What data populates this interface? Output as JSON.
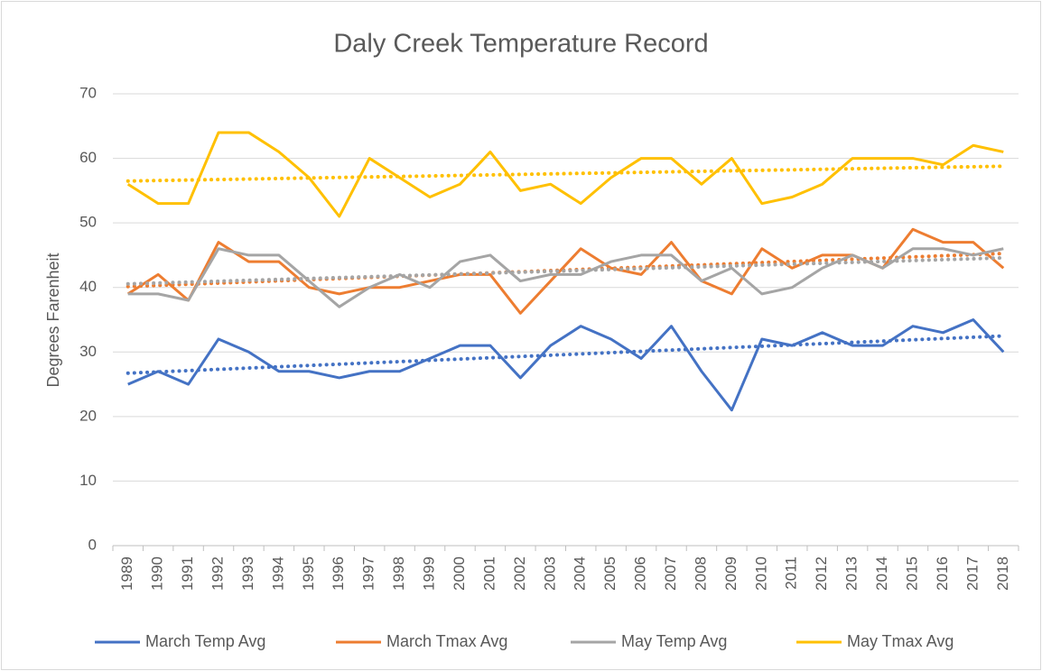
{
  "chart_data": {
    "type": "line",
    "title": "Daly Creek Temperature Record",
    "y_label": "Degrees Farenheit",
    "categories": [
      "1989",
      "1990",
      "1991",
      "1992",
      "1993",
      "1994",
      "1995",
      "1996",
      "1997",
      "1998",
      "1999",
      "2000",
      "2001",
      "2002",
      "2003",
      "2004",
      "2005",
      "2006",
      "2007",
      "2008",
      "2009",
      "2010",
      "2011",
      "2012",
      "2013",
      "2014",
      "2015",
      "2016",
      "2017",
      "2018"
    ],
    "series": [
      {
        "name": "March Temp Avg",
        "color": "#4472c4",
        "values": [
          25,
          27,
          25,
          32,
          30,
          27,
          27,
          26,
          27,
          27,
          29,
          31,
          31,
          26,
          31,
          34,
          32,
          29,
          34,
          27,
          21,
          32,
          31,
          33,
          31,
          31,
          34,
          33,
          35,
          30
        ]
      },
      {
        "name": "March Tmax Avg",
        "color": "#ed7d31",
        "values": [
          39,
          42,
          38,
          47,
          44,
          44,
          40,
          39,
          40,
          40,
          41,
          42,
          42,
          36,
          41,
          46,
          43,
          42,
          47,
          41,
          39,
          46,
          43,
          45,
          45,
          43,
          49,
          47,
          47,
          43
        ]
      },
      {
        "name": "May Temp Avg",
        "color": "#a5a5a5",
        "values": [
          39,
          39,
          38,
          46,
          45,
          45,
          41,
          37,
          40,
          42,
          40,
          44,
          45,
          41,
          42,
          42,
          44,
          45,
          45,
          41,
          43,
          39,
          40,
          43,
          45,
          43,
          46,
          46,
          45,
          46
        ]
      },
      {
        "name": "May Tmax Avg",
        "color": "#ffc000",
        "values": [
          56,
          53,
          53,
          64,
          64,
          61,
          57,
          51,
          60,
          57,
          54,
          56,
          61,
          55,
          56,
          53,
          57,
          60,
          60,
          56,
          60,
          53,
          54,
          56,
          60,
          60,
          60,
          59,
          62,
          61
        ]
      }
    ],
    "trendline": "linear",
    "ylim": [
      0,
      70
    ],
    "yticks": [
      0,
      10,
      20,
      30,
      40,
      50,
      60,
      70
    ],
    "grid": true,
    "legend": "bottom"
  }
}
